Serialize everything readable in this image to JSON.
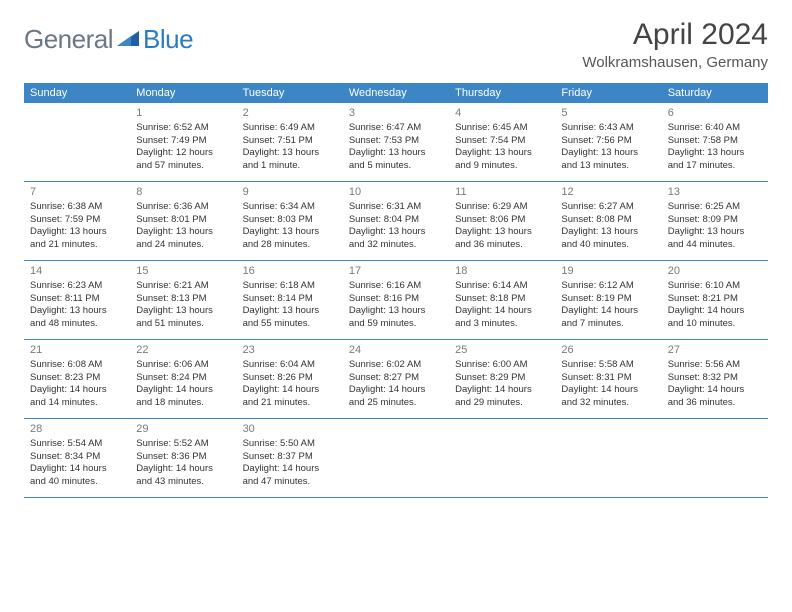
{
  "logo": {
    "text_gray": "General",
    "text_blue": "Blue"
  },
  "title": "April 2024",
  "location": "Wolkramshausen, Germany",
  "colors": {
    "header_bg": "#3d86c6",
    "header_text": "#ffffff",
    "logo_gray": "#6b7785",
    "logo_blue": "#2d7bc4",
    "daynum": "#7a7a7a",
    "body_text": "#333333",
    "rule": "#3d86c6"
  },
  "weekdays": [
    "Sunday",
    "Monday",
    "Tuesday",
    "Wednesday",
    "Thursday",
    "Friday",
    "Saturday"
  ],
  "weeks": [
    [
      {
        "num": "",
        "lines": []
      },
      {
        "num": "1",
        "lines": [
          "Sunrise: 6:52 AM",
          "Sunset: 7:49 PM",
          "Daylight: 12 hours and 57 minutes."
        ]
      },
      {
        "num": "2",
        "lines": [
          "Sunrise: 6:49 AM",
          "Sunset: 7:51 PM",
          "Daylight: 13 hours and 1 minute."
        ]
      },
      {
        "num": "3",
        "lines": [
          "Sunrise: 6:47 AM",
          "Sunset: 7:53 PM",
          "Daylight: 13 hours and 5 minutes."
        ]
      },
      {
        "num": "4",
        "lines": [
          "Sunrise: 6:45 AM",
          "Sunset: 7:54 PM",
          "Daylight: 13 hours and 9 minutes."
        ]
      },
      {
        "num": "5",
        "lines": [
          "Sunrise: 6:43 AM",
          "Sunset: 7:56 PM",
          "Daylight: 13 hours and 13 minutes."
        ]
      },
      {
        "num": "6",
        "lines": [
          "Sunrise: 6:40 AM",
          "Sunset: 7:58 PM",
          "Daylight: 13 hours and 17 minutes."
        ]
      }
    ],
    [
      {
        "num": "7",
        "lines": [
          "Sunrise: 6:38 AM",
          "Sunset: 7:59 PM",
          "Daylight: 13 hours and 21 minutes."
        ]
      },
      {
        "num": "8",
        "lines": [
          "Sunrise: 6:36 AM",
          "Sunset: 8:01 PM",
          "Daylight: 13 hours and 24 minutes."
        ]
      },
      {
        "num": "9",
        "lines": [
          "Sunrise: 6:34 AM",
          "Sunset: 8:03 PM",
          "Daylight: 13 hours and 28 minutes."
        ]
      },
      {
        "num": "10",
        "lines": [
          "Sunrise: 6:31 AM",
          "Sunset: 8:04 PM",
          "Daylight: 13 hours and 32 minutes."
        ]
      },
      {
        "num": "11",
        "lines": [
          "Sunrise: 6:29 AM",
          "Sunset: 8:06 PM",
          "Daylight: 13 hours and 36 minutes."
        ]
      },
      {
        "num": "12",
        "lines": [
          "Sunrise: 6:27 AM",
          "Sunset: 8:08 PM",
          "Daylight: 13 hours and 40 minutes."
        ]
      },
      {
        "num": "13",
        "lines": [
          "Sunrise: 6:25 AM",
          "Sunset: 8:09 PM",
          "Daylight: 13 hours and 44 minutes."
        ]
      }
    ],
    [
      {
        "num": "14",
        "lines": [
          "Sunrise: 6:23 AM",
          "Sunset: 8:11 PM",
          "Daylight: 13 hours and 48 minutes."
        ]
      },
      {
        "num": "15",
        "lines": [
          "Sunrise: 6:21 AM",
          "Sunset: 8:13 PM",
          "Daylight: 13 hours and 51 minutes."
        ]
      },
      {
        "num": "16",
        "lines": [
          "Sunrise: 6:18 AM",
          "Sunset: 8:14 PM",
          "Daylight: 13 hours and 55 minutes."
        ]
      },
      {
        "num": "17",
        "lines": [
          "Sunrise: 6:16 AM",
          "Sunset: 8:16 PM",
          "Daylight: 13 hours and 59 minutes."
        ]
      },
      {
        "num": "18",
        "lines": [
          "Sunrise: 6:14 AM",
          "Sunset: 8:18 PM",
          "Daylight: 14 hours and 3 minutes."
        ]
      },
      {
        "num": "19",
        "lines": [
          "Sunrise: 6:12 AM",
          "Sunset: 8:19 PM",
          "Daylight: 14 hours and 7 minutes."
        ]
      },
      {
        "num": "20",
        "lines": [
          "Sunrise: 6:10 AM",
          "Sunset: 8:21 PM",
          "Daylight: 14 hours and 10 minutes."
        ]
      }
    ],
    [
      {
        "num": "21",
        "lines": [
          "Sunrise: 6:08 AM",
          "Sunset: 8:23 PM",
          "Daylight: 14 hours and 14 minutes."
        ]
      },
      {
        "num": "22",
        "lines": [
          "Sunrise: 6:06 AM",
          "Sunset: 8:24 PM",
          "Daylight: 14 hours and 18 minutes."
        ]
      },
      {
        "num": "23",
        "lines": [
          "Sunrise: 6:04 AM",
          "Sunset: 8:26 PM",
          "Daylight: 14 hours and 21 minutes."
        ]
      },
      {
        "num": "24",
        "lines": [
          "Sunrise: 6:02 AM",
          "Sunset: 8:27 PM",
          "Daylight: 14 hours and 25 minutes."
        ]
      },
      {
        "num": "25",
        "lines": [
          "Sunrise: 6:00 AM",
          "Sunset: 8:29 PM",
          "Daylight: 14 hours and 29 minutes."
        ]
      },
      {
        "num": "26",
        "lines": [
          "Sunrise: 5:58 AM",
          "Sunset: 8:31 PM",
          "Daylight: 14 hours and 32 minutes."
        ]
      },
      {
        "num": "27",
        "lines": [
          "Sunrise: 5:56 AM",
          "Sunset: 8:32 PM",
          "Daylight: 14 hours and 36 minutes."
        ]
      }
    ],
    [
      {
        "num": "28",
        "lines": [
          "Sunrise: 5:54 AM",
          "Sunset: 8:34 PM",
          "Daylight: 14 hours and 40 minutes."
        ]
      },
      {
        "num": "29",
        "lines": [
          "Sunrise: 5:52 AM",
          "Sunset: 8:36 PM",
          "Daylight: 14 hours and 43 minutes."
        ]
      },
      {
        "num": "30",
        "lines": [
          "Sunrise: 5:50 AM",
          "Sunset: 8:37 PM",
          "Daylight: 14 hours and 47 minutes."
        ]
      },
      {
        "num": "",
        "lines": []
      },
      {
        "num": "",
        "lines": []
      },
      {
        "num": "",
        "lines": []
      },
      {
        "num": "",
        "lines": []
      }
    ]
  ]
}
